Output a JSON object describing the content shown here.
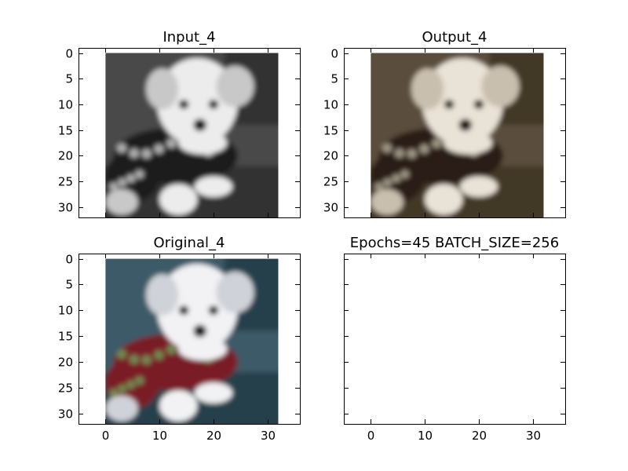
{
  "chart_data": [
    {
      "type": "image",
      "title": "Input_4",
      "image": {
        "kind": "grayscale",
        "extent": [
          0,
          32,
          32,
          0
        ],
        "description": "blurry grayscale photo of a small white puppy in a dark sweater"
      },
      "xlim": [
        -5,
        36
      ],
      "ylim": [
        32,
        -1
      ],
      "xticks": [],
      "yticks": [
        0,
        5,
        10,
        15,
        20,
        25,
        30
      ],
      "grid": false
    },
    {
      "type": "image",
      "title": "Output_4",
      "image": {
        "kind": "sepia",
        "extent": [
          0,
          32,
          32,
          0
        ],
        "description": "blurry brownish colorized photo of a small white puppy in a dark sweater"
      },
      "xlim": [
        -5,
        36
      ],
      "ylim": [
        32,
        -1
      ],
      "xticks": [],
      "yticks": [
        0,
        5,
        10,
        15,
        20,
        25,
        30
      ],
      "grid": false
    },
    {
      "type": "image",
      "title": "Original_4",
      "image": {
        "kind": "color",
        "extent": [
          0,
          32,
          32,
          0
        ],
        "description": "blurry color photo of a small white puppy in a red sweater on a teal background"
      },
      "xlim": [
        -5,
        36
      ],
      "ylim": [
        32,
        -1
      ],
      "xticks": [
        0,
        10,
        20,
        30
      ],
      "yticks": [
        0,
        5,
        10,
        15,
        20,
        25,
        30
      ],
      "grid": false
    },
    {
      "type": "empty",
      "title": "Epochs=45 BATCH_SIZE=256",
      "xlim": [
        -5,
        36
      ],
      "ylim": [
        32,
        -1
      ],
      "xticks": [
        0,
        10,
        20,
        30
      ],
      "yticks": [],
      "grid": false
    }
  ],
  "palettes": {
    "grayscale": {
      "bg": "#4a4a4a",
      "bgDark": "#333333",
      "fur": "#ececec",
      "furShade": "#c8c8c8",
      "sweater": "#1e1e1e",
      "beads": "#b0b0b0",
      "eye": "#111111"
    },
    "sepia": {
      "bg": "#5a4e3c",
      "bgDark": "#433828",
      "fur": "#e9e2d6",
      "furShade": "#c9bfae",
      "sweater": "#2a1d16",
      "beads": "#9e9784",
      "eye": "#160f0c"
    },
    "color": {
      "bg": "#3c5a68",
      "bgDark": "#26404c",
      "fur": "#f2f2f4",
      "furShade": "#cfd2d8",
      "sweater": "#7a1a28",
      "beads": "#6f8a52",
      "eye": "#15100f"
    }
  }
}
